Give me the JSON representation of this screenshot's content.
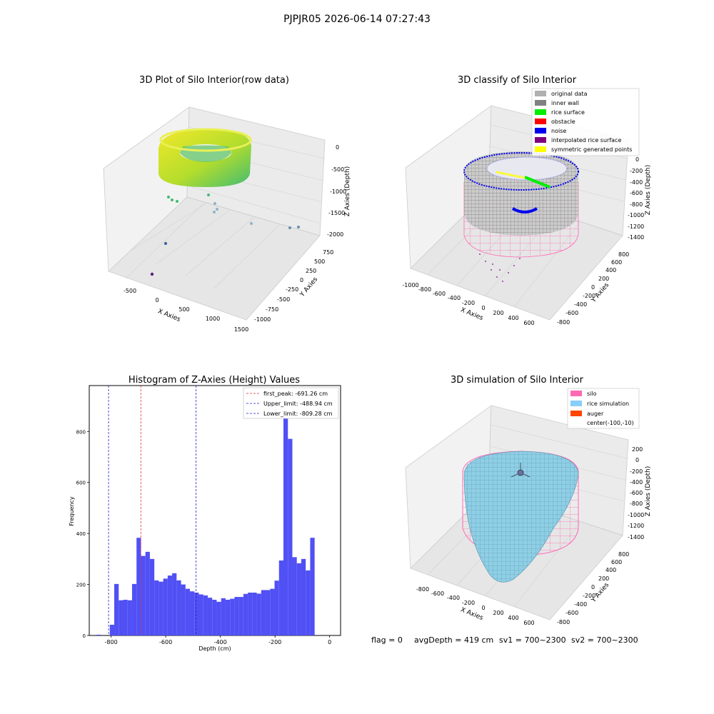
{
  "suptitle": "PJPJR05 2026-06-14 07:27:43",
  "footer": {
    "flag": "flag = 0",
    "avg_depth": "avgDepth = 419 cm",
    "sv1": "sv1 = 700~2300",
    "sv2": "sv2 = 700~2300"
  },
  "colors": {
    "hist_bar": "#5050f5",
    "first_peak_line": "#e03030",
    "limit_line": "#2020d0",
    "original_data": "#b0b0b0",
    "inner_wall": "#808080",
    "rice_surface": "#00ee00",
    "obstacle": "#ff0000",
    "noise": "#0000ee",
    "interpolated_rice_surface": "#800080",
    "symmetric_generated_points": "#ffff00",
    "silo": "#ff69b4",
    "rice_simulation": "#87cefa",
    "auger": "#ff4500"
  },
  "chart_data": [
    {
      "type": "scatter",
      "title": "3D Plot of Silo Interior(row data)",
      "xlabel": "X Axies",
      "ylabel": "Y Axies",
      "zlabel": "Z Axies (Depth)",
      "xticks": [
        "-500",
        "0",
        "500",
        "1000",
        "1500"
      ],
      "yticks": [
        "-1000",
        "-750",
        "-500",
        "-250",
        "0",
        "250",
        "500",
        "750"
      ],
      "zticks": [
        "0",
        "-500",
        "-1000",
        "-1500",
        "-2000"
      ]
    },
    {
      "type": "scatter",
      "title": "3D classify of Silo Interior",
      "xlabel": "X Axies",
      "ylabel": "Y Axies",
      "zlabel": "Z Axies (Depth)",
      "xticks": [
        "-1000",
        "-800",
        "-600",
        "-400",
        "-200",
        "0",
        "200",
        "400",
        "600"
      ],
      "yticks": [
        "-800",
        "-600",
        "-400",
        "-200",
        "0",
        "200",
        "400",
        "600",
        "800"
      ],
      "zticks": [
        "0",
        "-200",
        "-400",
        "-600",
        "-800",
        "-1000",
        "-1200",
        "-1400"
      ],
      "legend": [
        "original data",
        "inner wall",
        "rice surface",
        "obstacle",
        "noise",
        "interpolated rice surface",
        "symmetric generated points"
      ],
      "legend_placement": "top-right"
    },
    {
      "type": "bar",
      "title": "Histogram of Z-Axies (Height) Values",
      "xlabel": "Depth (cm)",
      "ylabel": "Frequency",
      "xlim": [
        -880,
        40
      ],
      "ylim": [
        0,
        980
      ],
      "xticks": [
        -800,
        -600,
        -400,
        -200,
        0
      ],
      "yticks": [
        0,
        200,
        400,
        600,
        800
      ],
      "bin_start": -870,
      "bin_width": 16.3,
      "values": [
        0,
        3,
        0,
        0,
        42,
        202,
        138,
        140,
        138,
        202,
        383,
        312,
        328,
        300,
        216,
        211,
        223,
        235,
        244,
        216,
        200,
        183,
        173,
        168,
        161,
        157,
        148,
        140,
        132,
        146,
        140,
        144,
        151,
        151,
        163,
        168,
        168,
        164,
        178,
        178,
        183,
        215,
        294,
        932,
        771,
        307,
        283,
        300,
        255,
        383
      ],
      "vlines": [
        {
          "label": "first_peak: -691.26 cm",
          "x": -691.26,
          "color": "red"
        },
        {
          "label": "Upper_limit: -488.94 cm",
          "x": -488.94,
          "color": "blue"
        },
        {
          "label": "Lower_limit: -809.28 cm",
          "x": -809.28,
          "color": "blue"
        }
      ],
      "legend_placement": "top-right",
      "grid": false
    },
    {
      "type": "surface",
      "title": "3D simulation of Silo Interior",
      "xlabel": "X Axies",
      "ylabel": "Y Axies",
      "zlabel": "Z Axies (Depth)",
      "xticks": [
        "-800",
        "-600",
        "-400",
        "-200",
        "0",
        "200",
        "400",
        "600"
      ],
      "yticks": [
        "-800",
        "-600",
        "-400",
        "-200",
        "0",
        "200",
        "400",
        "600",
        "800"
      ],
      "zticks": [
        "200",
        "0",
        "-200",
        "-400",
        "-600",
        "-800",
        "-1000",
        "-1200",
        "-1400"
      ],
      "legend": [
        "silo",
        "rice simulation",
        "auger",
        "center(-100,-10)"
      ],
      "legend_placement": "top-right"
    }
  ]
}
